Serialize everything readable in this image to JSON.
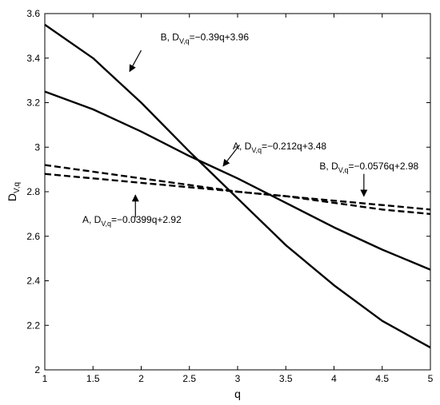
{
  "chart_data": {
    "type": "line",
    "title": "",
    "xlabel": "q",
    "ylabel": {
      "main": "D",
      "sub": "V,q"
    },
    "xlim": [
      1,
      5
    ],
    "ylim": [
      2,
      3.6
    ],
    "xticks": [
      "1",
      "1.5",
      "2",
      "2.5",
      "3",
      "3.5",
      "4",
      "4.5",
      "5"
    ],
    "yticks": [
      "2",
      "2.2",
      "2.4",
      "2.6",
      "2.8",
      "3",
      "3.2",
      "3.4",
      "3.6"
    ],
    "grid": false,
    "legend": "none",
    "x": [
      1,
      1.5,
      2,
      2.5,
      3,
      3.5,
      4,
      4.5,
      5
    ],
    "series": [
      {
        "values": [
          3.55,
          3.4,
          3.2,
          2.98,
          2.77,
          2.56,
          2.38,
          2.22,
          2.1
        ],
        "style": "solid"
      },
      {
        "values": [
          3.25,
          3.17,
          3.07,
          2.96,
          2.86,
          2.75,
          2.64,
          2.54,
          2.45
        ],
        "style": "solid"
      },
      {
        "values": [
          2.92,
          2.89,
          2.86,
          2.83,
          2.8,
          2.78,
          2.76,
          2.74,
          2.72
        ],
        "style": "dashed"
      },
      {
        "values": [
          2.88,
          2.86,
          2.84,
          2.82,
          2.8,
          2.78,
          2.75,
          2.72,
          2.7
        ],
        "style": "dashed"
      }
    ],
    "annotations": [
      {
        "prefix": "B, D",
        "sub": "V,q",
        "suffix": "=−0.39q+3.96",
        "text_at": [
          2.2,
          3.48
        ],
        "arrow_from": [
          2.0,
          3.435
        ],
        "arrow_to": [
          1.88,
          3.34
        ]
      },
      {
        "prefix": "A, D",
        "sub": "V,q",
        "suffix": "=−0.212q+3.48",
        "text_at": [
          2.95,
          2.99
        ],
        "arrow_from": [
          3.02,
          3.01
        ],
        "arrow_to": [
          2.85,
          2.915
        ]
      },
      {
        "prefix": "B, D",
        "sub": "V,q",
        "suffix": "=−0.0576q+2.98",
        "text_at": [
          3.85,
          2.9
        ],
        "arrow_from": [
          4.31,
          2.88
        ],
        "arrow_to": [
          4.31,
          2.78
        ]
      },
      {
        "prefix": "A, D",
        "sub": "V,q",
        "suffix": "=−0.0399q+2.92",
        "text_at": [
          1.39,
          2.66
        ],
        "arrow_from": [
          1.94,
          2.685
        ],
        "arrow_to": [
          1.94,
          2.785
        ]
      }
    ]
  }
}
